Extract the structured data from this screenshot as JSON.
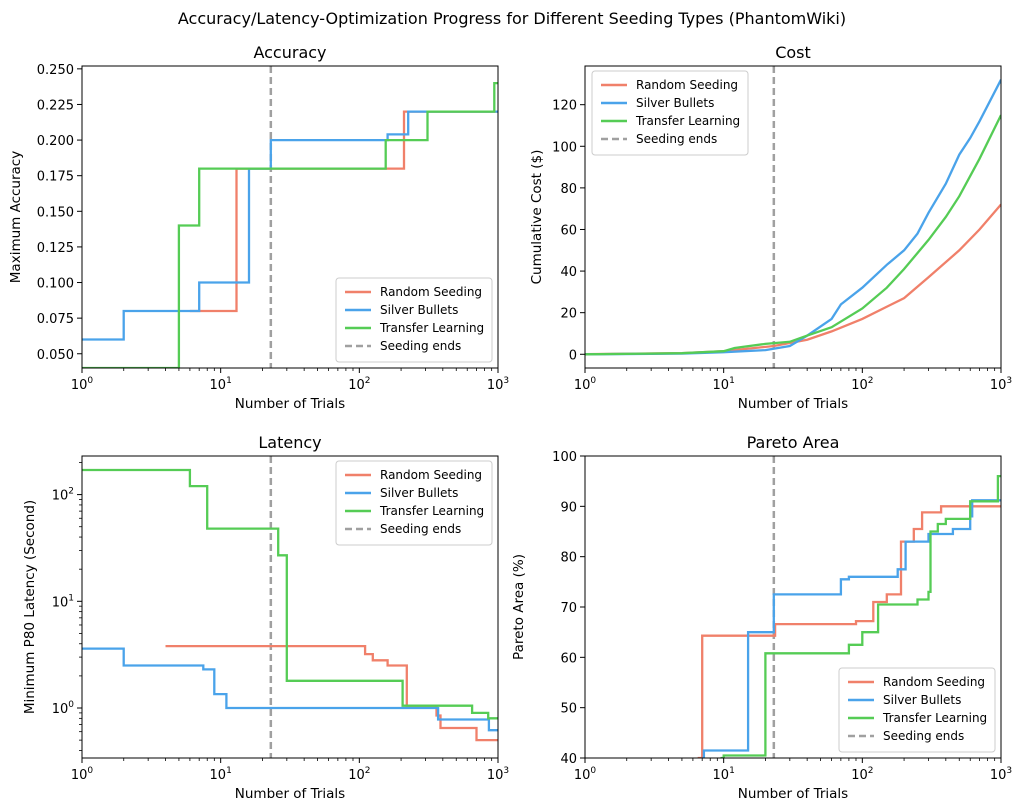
{
  "suptitle": "Accuracy/Latency-Optimization Progress for Different Seeding Types (PhantomWiki)",
  "colors": {
    "random": "#f0806a",
    "silver": "#4aa3ea",
    "transfer": "#55cc55",
    "seeding": "#a0a0a0"
  },
  "legend_labels": [
    "Random Seeding",
    "Silver Bullets",
    "Transfer Learning",
    "Seeding ends"
  ],
  "chart_data": [
    {
      "id": "accuracy",
      "type": "line",
      "title": "Accuracy",
      "xlabel": "Number of Trials",
      "ylabel": "Maximum Accuracy",
      "xscale": "log",
      "xlim": [
        1,
        1000
      ],
      "yscale": "linear",
      "ylim": [
        0.04,
        0.252
      ],
      "xticks": [
        {
          "v": 1,
          "base": "10",
          "exp": "0"
        },
        {
          "v": 10,
          "base": "10",
          "exp": "1"
        },
        {
          "v": 100,
          "base": "10",
          "exp": "2"
        },
        {
          "v": 1000,
          "base": "10",
          "exp": "3"
        }
      ],
      "yticks": [
        {
          "v": 0.05,
          "label": "0.050"
        },
        {
          "v": 0.075,
          "label": "0.075"
        },
        {
          "v": 0.1,
          "label": "0.100"
        },
        {
          "v": 0.125,
          "label": "0.125"
        },
        {
          "v": 0.15,
          "label": "0.150"
        },
        {
          "v": 0.175,
          "label": "0.175"
        },
        {
          "v": 0.2,
          "label": "0.200"
        },
        {
          "v": 0.225,
          "label": "0.225"
        },
        {
          "v": 0.25,
          "label": "0.250"
        }
      ],
      "seeding_end": 23,
      "legend_loc": "lower-right",
      "series": [
        {
          "name": "Random Seeding",
          "key": "random",
          "step": true,
          "points": [
            [
              6,
              0.08
            ],
            [
              12.5,
              0.08
            ],
            [
              13,
              0.18
            ],
            [
              200,
              0.18
            ],
            [
              210,
              0.22
            ],
            [
              1000,
              0.22
            ]
          ]
        },
        {
          "name": "Silver Bullets",
          "key": "silver",
          "step": true,
          "points": [
            [
              1,
              0.06
            ],
            [
              2,
              0.08
            ],
            [
              7,
              0.08
            ],
            [
              7,
              0.1
            ],
            [
              15,
              0.1
            ],
            [
              16,
              0.18
            ],
            [
              23,
              0.18
            ],
            [
              23,
              0.2
            ],
            [
              160,
              0.2
            ],
            [
              160,
              0.204
            ],
            [
              225,
              0.204
            ],
            [
              225,
              0.22
            ],
            [
              1000,
              0.22
            ]
          ]
        },
        {
          "name": "Transfer Learning",
          "key": "transfer",
          "step": true,
          "points": [
            [
              1,
              0.04
            ],
            [
              4.2,
              0.04
            ],
            [
              5,
              0.14
            ],
            [
              6,
              0.14
            ],
            [
              7,
              0.18
            ],
            [
              155,
              0.18
            ],
            [
              155,
              0.2
            ],
            [
              310,
              0.2
            ],
            [
              310,
              0.22
            ],
            [
              940,
              0.22
            ],
            [
              940,
              0.24
            ],
            [
              1000,
              0.24
            ]
          ]
        }
      ]
    },
    {
      "id": "cost",
      "type": "line",
      "title": "Cost",
      "xlabel": "Number of Trials",
      "ylabel": "Cumulative Cost ($)",
      "xscale": "log",
      "xlim": [
        1,
        1000
      ],
      "yscale": "linear",
      "ylim": [
        -6.6,
        138.6
      ],
      "xticks": [
        {
          "v": 1,
          "base": "10",
          "exp": "0"
        },
        {
          "v": 10,
          "base": "10",
          "exp": "1"
        },
        {
          "v": 100,
          "base": "10",
          "exp": "2"
        },
        {
          "v": 1000,
          "base": "10",
          "exp": "3"
        }
      ],
      "yticks": [
        {
          "v": 0,
          "label": "0"
        },
        {
          "v": 20,
          "label": "20"
        },
        {
          "v": 40,
          "label": "40"
        },
        {
          "v": 60,
          "label": "60"
        },
        {
          "v": 80,
          "label": "80"
        },
        {
          "v": 100,
          "label": "100"
        },
        {
          "v": 120,
          "label": "120"
        }
      ],
      "seeding_end": 23,
      "legend_loc": "upper-left",
      "series": [
        {
          "name": "Random Seeding",
          "key": "random",
          "step": false,
          "points": [
            [
              1,
              0.1
            ],
            [
              5,
              0.5
            ],
            [
              10,
              1.5
            ],
            [
              23,
              4
            ],
            [
              40,
              7
            ],
            [
              60,
              11
            ],
            [
              100,
              17
            ],
            [
              200,
              27
            ],
            [
              300,
              37
            ],
            [
              500,
              50
            ],
            [
              700,
              60
            ],
            [
              1000,
              72
            ]
          ]
        },
        {
          "name": "Silver Bullets",
          "key": "silver",
          "step": false,
          "points": [
            [
              1,
              0
            ],
            [
              5,
              0.3
            ],
            [
              10,
              1
            ],
            [
              20,
              2
            ],
            [
              30,
              4
            ],
            [
              40,
              9
            ],
            [
              60,
              17
            ],
            [
              70,
              24
            ],
            [
              100,
              32
            ],
            [
              150,
              43
            ],
            [
              200,
              50
            ],
            [
              250,
              58
            ],
            [
              300,
              68
            ],
            [
              400,
              82
            ],
            [
              500,
              96
            ],
            [
              600,
              104
            ],
            [
              700,
              112
            ],
            [
              1000,
              132
            ]
          ]
        },
        {
          "name": "Transfer Learning",
          "key": "transfer",
          "step": false,
          "points": [
            [
              1,
              0
            ],
            [
              5,
              0.5
            ],
            [
              10,
              1.5
            ],
            [
              12,
              3
            ],
            [
              20,
              5
            ],
            [
              30,
              6
            ],
            [
              40,
              9
            ],
            [
              60,
              13
            ],
            [
              100,
              22
            ],
            [
              150,
              32
            ],
            [
              200,
              41
            ],
            [
              300,
              55
            ],
            [
              400,
              66
            ],
            [
              500,
              76
            ],
            [
              700,
              94
            ],
            [
              1000,
              115
            ]
          ]
        }
      ]
    },
    {
      "id": "latency",
      "type": "line",
      "title": "Latency",
      "xlabel": "Number of Trials",
      "ylabel": "Minimum P80 Latency (Second)",
      "xscale": "log",
      "xlim": [
        1,
        1000
      ],
      "yscale": "log",
      "ylim": [
        0.34,
        230
      ],
      "xticks": [
        {
          "v": 1,
          "base": "10",
          "exp": "0"
        },
        {
          "v": 10,
          "base": "10",
          "exp": "1"
        },
        {
          "v": 100,
          "base": "10",
          "exp": "2"
        },
        {
          "v": 1000,
          "base": "10",
          "exp": "3"
        }
      ],
      "yticks": [
        {
          "v": 1,
          "base": "10",
          "exp": "0"
        },
        {
          "v": 10,
          "base": "10",
          "exp": "1"
        },
        {
          "v": 100,
          "base": "10",
          "exp": "2"
        }
      ],
      "seeding_end": 23,
      "legend_loc": "upper-right",
      "series": [
        {
          "name": "Random Seeding",
          "key": "random",
          "step": true,
          "points": [
            [
              4,
              3.8
            ],
            [
              110,
              3.8
            ],
            [
              110,
              3.2
            ],
            [
              125,
              3.2
            ],
            [
              125,
              2.8
            ],
            [
              160,
              2.8
            ],
            [
              160,
              2.5
            ],
            [
              220,
              2.5
            ],
            [
              220,
              1.05
            ],
            [
              360,
              1.05
            ],
            [
              360,
              0.85
            ],
            [
              385,
              0.85
            ],
            [
              385,
              0.65
            ],
            [
              700,
              0.65
            ],
            [
              700,
              0.5
            ],
            [
              1000,
              0.5
            ]
          ]
        },
        {
          "name": "Silver Bullets",
          "key": "silver",
          "step": true,
          "points": [
            [
              1,
              3.6
            ],
            [
              2,
              2.5
            ],
            [
              7.5,
              2.5
            ],
            [
              7.5,
              2.3
            ],
            [
              8.5,
              2.3
            ],
            [
              9,
              1.35
            ],
            [
              10.5,
              1.35
            ],
            [
              11,
              1.0
            ],
            [
              370,
              1.0
            ],
            [
              370,
              0.78
            ],
            [
              860,
              0.78
            ],
            [
              860,
              0.62
            ],
            [
              1000,
              0.62
            ]
          ]
        },
        {
          "name": "Transfer Learning",
          "key": "transfer",
          "step": true,
          "points": [
            [
              1,
              170
            ],
            [
              5,
              170
            ],
            [
              6,
              120
            ],
            [
              7,
              120
            ],
            [
              8,
              48
            ],
            [
              26,
              48
            ],
            [
              26,
              27
            ],
            [
              29,
              27
            ],
            [
              30,
              1.8
            ],
            [
              200,
              1.8
            ],
            [
              205,
              1.05
            ],
            [
              650,
              1.05
            ],
            [
              650,
              0.9
            ],
            [
              850,
              0.9
            ],
            [
              850,
              0.8
            ],
            [
              1000,
              0.8
            ]
          ]
        }
      ]
    },
    {
      "id": "pareto",
      "type": "line",
      "title": "Pareto Area",
      "xlabel": "Number of Trials",
      "ylabel": "Pareto Area (%)",
      "xscale": "log",
      "xlim": [
        1,
        1000
      ],
      "yscale": "linear",
      "ylim": [
        40,
        100
      ],
      "xticks": [
        {
          "v": 1,
          "base": "10",
          "exp": "0"
        },
        {
          "v": 10,
          "base": "10",
          "exp": "1"
        },
        {
          "v": 100,
          "base": "10",
          "exp": "2"
        },
        {
          "v": 1000,
          "base": "10",
          "exp": "3"
        }
      ],
      "yticks": [
        {
          "v": 40,
          "label": "40"
        },
        {
          "v": 50,
          "label": "50"
        },
        {
          "v": 60,
          "label": "60"
        },
        {
          "v": 70,
          "label": "70"
        },
        {
          "v": 80,
          "label": "80"
        },
        {
          "v": 90,
          "label": "90"
        },
        {
          "v": 100,
          "label": "100"
        }
      ],
      "seeding_end": 23,
      "legend_loc": "lower-right",
      "series": [
        {
          "name": "Random Seeding",
          "key": "random",
          "step": true,
          "points": [
            [
              6.5,
              40
            ],
            [
              7,
              64.3
            ],
            [
              23,
              64.3
            ],
            [
              23.5,
              66.6
            ],
            [
              90,
              66.6
            ],
            [
              90,
              67.2
            ],
            [
              115,
              67.2
            ],
            [
              120,
              71
            ],
            [
              150,
              71
            ],
            [
              150,
              72.5
            ],
            [
              185,
              72.5
            ],
            [
              190,
              83
            ],
            [
              230,
              83
            ],
            [
              235,
              85.5
            ],
            [
              260,
              85.5
            ],
            [
              270,
              88.8
            ],
            [
              350,
              88.8
            ],
            [
              370,
              90
            ],
            [
              1000,
              90
            ]
          ]
        },
        {
          "name": "Silver Bullets",
          "key": "silver",
          "step": true,
          "points": [
            [
              7,
              40
            ],
            [
              7.2,
              41.5
            ],
            [
              14,
              41.5
            ],
            [
              15,
              65
            ],
            [
              22,
              65
            ],
            [
              23,
              72.5
            ],
            [
              70,
              72.5
            ],
            [
              70,
              75.5
            ],
            [
              80,
              75.5
            ],
            [
              80,
              76
            ],
            [
              180,
              76
            ],
            [
              180,
              77.5
            ],
            [
              200,
              77.5
            ],
            [
              205,
              83
            ],
            [
              300,
              83
            ],
            [
              300,
              84.5
            ],
            [
              450,
              84.5
            ],
            [
              450,
              85.5
            ],
            [
              600,
              85.5
            ],
            [
              600,
              88
            ],
            [
              620,
              88
            ],
            [
              620,
              91.2
            ],
            [
              1000,
              91.2
            ]
          ]
        },
        {
          "name": "Transfer Learning",
          "key": "transfer",
          "step": true,
          "points": [
            [
              9.5,
              40
            ],
            [
              10,
              40.5
            ],
            [
              19,
              40.5
            ],
            [
              20,
              60.8
            ],
            [
              80,
              60.8
            ],
            [
              80,
              62.5
            ],
            [
              100,
              62.5
            ],
            [
              100,
              65
            ],
            [
              130,
              65
            ],
            [
              130,
              70.5
            ],
            [
              250,
              70.5
            ],
            [
              250,
              71.5
            ],
            [
              295,
              71.5
            ],
            [
              300,
              73
            ],
            [
              310,
              85
            ],
            [
              350,
              86.5
            ],
            [
              400,
              87.5
            ],
            [
              600,
              87.5
            ],
            [
              600,
              91
            ],
            [
              950,
              91
            ],
            [
              950,
              96
            ],
            [
              1000,
              96
            ]
          ]
        }
      ]
    }
  ]
}
